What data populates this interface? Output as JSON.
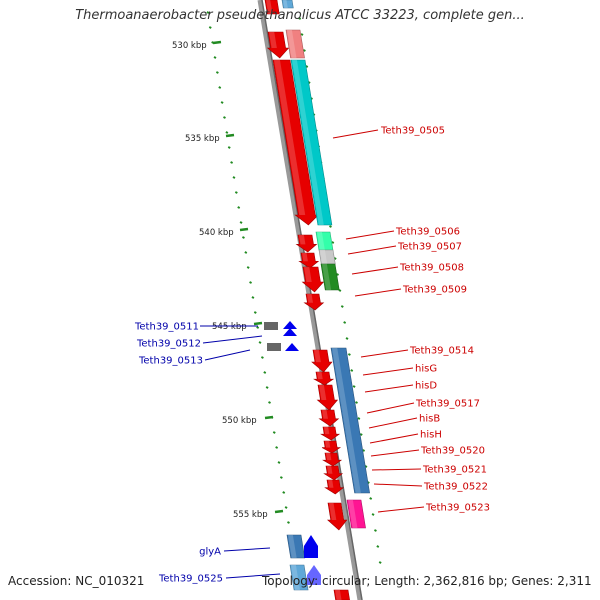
{
  "title": "Thermoanaerobacter pseudethanolicus ATCC 33223, complete gen...",
  "footer": {
    "accession": "Accession: NC_010321",
    "summary": "Topology: circular; Length: 2,362,816 bp; Genes: 2,311"
  },
  "colors": {
    "red_gene": "#e60000",
    "cyan_gene": "#00c8c8",
    "blue_gene": "#3a78b4",
    "green_gene": "#228b22",
    "mint_gene": "#33ffaa",
    "pink_gene": "#ff1493",
    "dark_blue_marker": "#0000ee",
    "label_red": "#cc0000",
    "label_blue": "#0000aa",
    "tick_green": "#228b22"
  },
  "ticks": [
    "530 kbp",
    "535 kbp",
    "540 kbp",
    "545 kbp",
    "550 kbp",
    "555 kbp"
  ],
  "labels": [
    {
      "text": "Teth39_0505",
      "color": "red"
    },
    {
      "text": "Teth39_0506",
      "color": "red"
    },
    {
      "text": "Teth39_0507",
      "color": "red"
    },
    {
      "text": "Teth39_0508",
      "color": "red"
    },
    {
      "text": "Teth39_0509",
      "color": "red"
    },
    {
      "text": "Teth39_0514",
      "color": "red"
    },
    {
      "text": "hisG",
      "color": "red"
    },
    {
      "text": "hisD",
      "color": "red"
    },
    {
      "text": "Teth39_0517",
      "color": "red"
    },
    {
      "text": "hisB",
      "color": "red"
    },
    {
      "text": "hisH",
      "color": "red"
    },
    {
      "text": "Teth39_0520",
      "color": "red"
    },
    {
      "text": "Teth39_0521",
      "color": "red"
    },
    {
      "text": "Teth39_0522",
      "color": "red"
    },
    {
      "text": "Teth39_0523",
      "color": "red"
    },
    {
      "text": "Teth39_0511",
      "color": "blue"
    },
    {
      "text": "Teth39_0512",
      "color": "blue"
    },
    {
      "text": "Teth39_0513",
      "color": "blue"
    },
    {
      "text": "glyA",
      "color": "blue"
    },
    {
      "text": "Teth39_0525",
      "color": "blue"
    }
  ]
}
